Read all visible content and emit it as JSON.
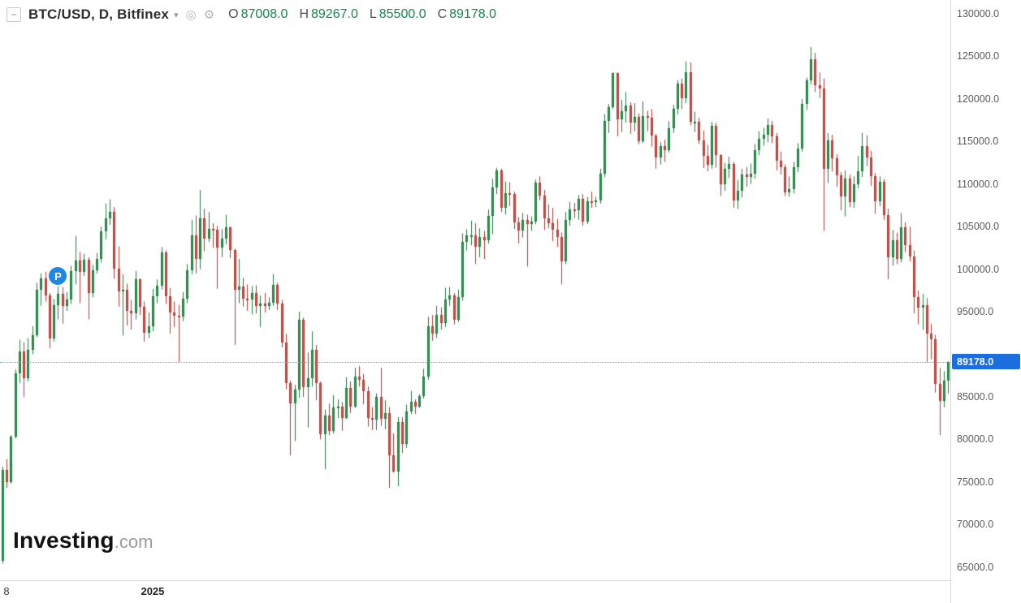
{
  "header": {
    "collapse_glyph": "−",
    "symbol_title": "BTC/USD, D, Bitfinex",
    "caret_glyph": "▾",
    "snapshot_icon_glyph": "◎",
    "settings_icon_glyph": "⚙",
    "ohlc": [
      {
        "label": "O",
        "value": "87008.0"
      },
      {
        "label": "H",
        "value": "89267.0"
      },
      {
        "label": "L",
        "value": "85500.0"
      },
      {
        "label": "C",
        "value": "89178.0"
      }
    ],
    "ohlc_color": "#138a4c"
  },
  "logo": {
    "brand": "Investing",
    "suffix": ".com"
  },
  "price_axis": {
    "labels": [
      {
        "price": 130000,
        "text": "130000.0"
      },
      {
        "price": 125000,
        "text": "125000.0"
      },
      {
        "price": 120000,
        "text": "120000.0"
      },
      {
        "price": 115000,
        "text": "115000.0"
      },
      {
        "price": 110000,
        "text": "110000.0"
      },
      {
        "price": 105000,
        "text": "105000.0"
      },
      {
        "price": 100000,
        "text": "100000.0"
      },
      {
        "price": 95000,
        "text": "95000.0"
      },
      {
        "price": 85000,
        "text": "85000.0"
      },
      {
        "price": 80000,
        "text": "80000.0"
      },
      {
        "price": 75000,
        "text": "75000.0"
      },
      {
        "price": 70000,
        "text": "70000.0"
      },
      {
        "price": 65000,
        "text": "65000.0"
      }
    ],
    "current": {
      "text": "89178.0",
      "price": 89178,
      "bg": "#1c6ede"
    }
  },
  "time_axis": {
    "labels": [
      {
        "text": "8",
        "index": 1,
        "year": false
      },
      {
        "text": "2025",
        "index": 35,
        "year": true
      }
    ]
  },
  "marker": {
    "label": "P",
    "index": 13,
    "price": 99300,
    "bg": "#1e88e5"
  },
  "chart_data": {
    "type": "candlestick",
    "title": "BTC/USD, D, Bitfinex",
    "symbol": "BTC/USD",
    "interval": "D",
    "exchange": "Bitfinex",
    "last": {
      "open": 87008.0,
      "high": 89267.0,
      "low": 85500.0,
      "close": 89178.0
    },
    "ylim": [
      63550,
      131720
    ],
    "y_ticks": [
      65000,
      70000,
      75000,
      80000,
      85000,
      90000,
      95000,
      100000,
      105000,
      110000,
      115000,
      120000,
      125000,
      130000
    ],
    "grid": false,
    "colors": {
      "up": "#2e9e53",
      "down": "#dd4f47",
      "up_border": "#1f7a3e",
      "down_border": "#b23b35"
    },
    "candles": [
      [
        65800,
        76900,
        65500,
        76500
      ],
      [
        76500,
        77800,
        74400,
        75100
      ],
      [
        75100,
        80600,
        74900,
        80400
      ],
      [
        80400,
        88300,
        80200,
        87900
      ],
      [
        87900,
        91800,
        86700,
        90400
      ],
      [
        90400,
        91500,
        85100,
        87300
      ],
      [
        87300,
        92000,
        86900,
        90600
      ],
      [
        90600,
        93400,
        90100,
        92300
      ],
      [
        92300,
        98500,
        92100,
        97700
      ],
      [
        97700,
        99600,
        95800,
        99000
      ],
      [
        99000,
        99800,
        96300,
        97000
      ],
      [
        97000,
        97300,
        90800,
        92000
      ],
      [
        92000,
        96600,
        91600,
        95900
      ],
      [
        95900,
        98100,
        94200,
        97200
      ],
      [
        97200,
        98000,
        93700,
        95800
      ],
      [
        95800,
        97400,
        95200,
        96500
      ],
      [
        96500,
        100500,
        96000,
        99900
      ],
      [
        99900,
        104000,
        98300,
        101100
      ],
      [
        101100,
        102100,
        96100,
        99800
      ],
      [
        99800,
        101900,
        99300,
        101200
      ],
      [
        101200,
        101500,
        94200,
        97300
      ],
      [
        97300,
        100600,
        96800,
        100000
      ],
      [
        100000,
        102000,
        99600,
        101300
      ],
      [
        101300,
        105100,
        100900,
        104500
      ],
      [
        104500,
        107800,
        103600,
        106100
      ],
      [
        106100,
        108300,
        105300,
        106800
      ],
      [
        106800,
        107400,
        99000,
        100200
      ],
      [
        100200,
        102800,
        95700,
        97500
      ],
      [
        97500,
        99500,
        92300,
        97700
      ],
      [
        97700,
        98400,
        93500,
        95200
      ],
      [
        95200,
        96500,
        93000,
        94900
      ],
      [
        94900,
        99900,
        94200,
        98900
      ],
      [
        98900,
        99000,
        94700,
        95700
      ],
      [
        95700,
        96300,
        91600,
        92600
      ],
      [
        92600,
        95000,
        92000,
        93400
      ],
      [
        93400,
        97800,
        92800,
        96900
      ],
      [
        96900,
        98900,
        96100,
        98200
      ],
      [
        98200,
        102700,
        97700,
        102100
      ],
      [
        102100,
        102300,
        96000,
        96900
      ],
      [
        96900,
        97900,
        92500,
        95000
      ],
      [
        95000,
        96300,
        93300,
        94600
      ],
      [
        94600,
        95900,
        89200,
        94500
      ],
      [
        94500,
        97400,
        94000,
        96600
      ],
      [
        96600,
        100700,
        96100,
        100000
      ],
      [
        100000,
        105900,
        99500,
        104100
      ],
      [
        104100,
        106400,
        99600,
        101300
      ],
      [
        101300,
        109400,
        100100,
        106100
      ],
      [
        106100,
        107200,
        102200,
        103700
      ],
      [
        103700,
        106800,
        103300,
        104800
      ],
      [
        104800,
        105500,
        102600,
        104700
      ],
      [
        104700,
        105200,
        97800,
        102600
      ],
      [
        102600,
        104800,
        101500,
        103700
      ],
      [
        103700,
        106500,
        103000,
        105000
      ],
      [
        105000,
        105100,
        101400,
        102400
      ],
      [
        102400,
        102500,
        91200,
        97700
      ],
      [
        97700,
        101300,
        96100,
        98100
      ],
      [
        98100,
        99100,
        95700,
        96600
      ],
      [
        96600,
        98300,
        95200,
        96500
      ],
      [
        96500,
        98100,
        94800,
        97300
      ],
      [
        97300,
        98200,
        94900,
        95800
      ],
      [
        95800,
        97000,
        93300,
        96100
      ],
      [
        96100,
        97300,
        95000,
        95800
      ],
      [
        95800,
        96800,
        95300,
        96200
      ],
      [
        96200,
        99500,
        95800,
        98300
      ],
      [
        98300,
        98500,
        95300,
        96100
      ],
      [
        96100,
        96500,
        90900,
        91500
      ],
      [
        91500,
        92500,
        86000,
        86700
      ],
      [
        86700,
        87000,
        78200,
        84300
      ],
      [
        84300,
        86500,
        79900,
        86000
      ],
      [
        86000,
        95100,
        85000,
        94200
      ],
      [
        94200,
        94400,
        85100,
        86200
      ],
      [
        86200,
        90300,
        81500,
        87300
      ],
      [
        87300,
        92800,
        86300,
        90600
      ],
      [
        90600,
        91200,
        84700,
        86700
      ],
      [
        86700,
        86900,
        80100,
        80700
      ],
      [
        80700,
        83600,
        76600,
        82900
      ],
      [
        82900,
        84300,
        80600,
        81100
      ],
      [
        81100,
        85300,
        80800,
        83900
      ],
      [
        83900,
        84800,
        82600,
        84000
      ],
      [
        84000,
        84500,
        81100,
        82600
      ],
      [
        82600,
        87400,
        82500,
        86100
      ],
      [
        86100,
        86900,
        83200,
        84000
      ],
      [
        84000,
        88500,
        83800,
        87500
      ],
      [
        87500,
        88700,
        86300,
        87100
      ],
      [
        87100,
        87800,
        84200,
        85800
      ],
      [
        85800,
        86300,
        81600,
        82600
      ],
      [
        82600,
        83900,
        81200,
        82400
      ],
      [
        82400,
        85500,
        81200,
        85100
      ],
      [
        85100,
        88500,
        81700,
        82500
      ],
      [
        82500,
        84700,
        81300,
        83200
      ],
      [
        83200,
        83900,
        74400,
        78200
      ],
      [
        78200,
        80800,
        76200,
        76300
      ],
      [
        76300,
        82700,
        74600,
        82100
      ],
      [
        82100,
        82700,
        78500,
        79600
      ],
      [
        79600,
        84200,
        79100,
        83400
      ],
      [
        83400,
        85800,
        83100,
        84500
      ],
      [
        84500,
        84800,
        83100,
        84000
      ],
      [
        84000,
        85400,
        83800,
        85200
      ],
      [
        85200,
        88400,
        84900,
        87500
      ],
      [
        87500,
        94500,
        87100,
        93400
      ],
      [
        93400,
        94700,
        91700,
        92500
      ],
      [
        92500,
        95800,
        92000,
        94700
      ],
      [
        94700,
        95600,
        93000,
        93800
      ],
      [
        93800,
        97900,
        93300,
        96500
      ],
      [
        96500,
        98000,
        95800,
        97000
      ],
      [
        97000,
        97300,
        93600,
        94200
      ],
      [
        94200,
        97700,
        93900,
        96800
      ],
      [
        96800,
        104300,
        96400,
        103300
      ],
      [
        103300,
        104800,
        102300,
        104100
      ],
      [
        104100,
        105800,
        102900,
        104100
      ],
      [
        104100,
        105500,
        100700,
        102700
      ],
      [
        102700,
        104900,
        101500,
        103900
      ],
      [
        103900,
        104600,
        101300,
        103500
      ],
      [
        103500,
        107100,
        103100,
        106400
      ],
      [
        106400,
        110700,
        104200,
        109700
      ],
      [
        109700,
        112000,
        108900,
        111700
      ],
      [
        111700,
        111900,
        106800,
        107300
      ],
      [
        107300,
        110400,
        106500,
        109000
      ],
      [
        109000,
        110300,
        107500,
        108900
      ],
      [
        108900,
        109200,
        104800,
        105600
      ],
      [
        105600,
        106200,
        103100,
        104600
      ],
      [
        104600,
        106700,
        103800,
        105900
      ],
      [
        105900,
        106500,
        100400,
        105400
      ],
      [
        105400,
        106300,
        104600,
        105700
      ],
      [
        105700,
        110600,
        105400,
        110300
      ],
      [
        110300,
        111000,
        108200,
        108700
      ],
      [
        108700,
        109400,
        104700,
        106100
      ],
      [
        106100,
        107700,
        104900,
        105500
      ],
      [
        105500,
        107300,
        103400,
        104700
      ],
      [
        104700,
        106000,
        102700,
        103900
      ],
      [
        103900,
        104400,
        98300,
        101000
      ],
      [
        101000,
        106800,
        100700,
        105900
      ],
      [
        105900,
        108000,
        105200,
        107100
      ],
      [
        107100,
        107900,
        106100,
        107000
      ],
      [
        107000,
        108800,
        105900,
        108400
      ],
      [
        108400,
        108900,
        105200,
        105700
      ],
      [
        105700,
        108600,
        105400,
        108100
      ],
      [
        108100,
        109200,
        107300,
        108000
      ],
      [
        108000,
        108600,
        107400,
        108200
      ],
      [
        108200,
        111900,
        107800,
        111300
      ],
      [
        111300,
        118300,
        110900,
        117500
      ],
      [
        117500,
        119500,
        116100,
        119100
      ],
      [
        119100,
        123200,
        118900,
        123100
      ],
      [
        123100,
        123200,
        115700,
        117700
      ],
      [
        117700,
        120000,
        116200,
        118700
      ],
      [
        118700,
        120900,
        117300,
        119300
      ],
      [
        119300,
        119700,
        116000,
        117300
      ],
      [
        117300,
        119600,
        116300,
        118000
      ],
      [
        118000,
        118400,
        114800,
        115100
      ],
      [
        115100,
        119800,
        114900,
        118100
      ],
      [
        118100,
        118700,
        116300,
        117900
      ],
      [
        117900,
        118900,
        114500,
        115800
      ],
      [
        115800,
        116000,
        111900,
        113200
      ],
      [
        113200,
        115000,
        112400,
        114600
      ],
      [
        114600,
        115300,
        112700,
        114100
      ],
      [
        114100,
        117500,
        113800,
        116700
      ],
      [
        116700,
        119400,
        116100,
        118900
      ],
      [
        118900,
        122300,
        118300,
        121900
      ],
      [
        121900,
        122500,
        118900,
        120200
      ],
      [
        120200,
        124500,
        119600,
        123200
      ],
      [
        123200,
        124400,
        117000,
        117400
      ],
      [
        117400,
        118600,
        116200,
        117400
      ],
      [
        117400,
        117900,
        114800,
        115200
      ],
      [
        115200,
        116400,
        112000,
        113400
      ],
      [
        113400,
        114700,
        111600,
        112400
      ],
      [
        112400,
        117400,
        111900,
        116900
      ],
      [
        116900,
        117300,
        112000,
        113500
      ],
      [
        113500,
        113600,
        108700,
        110100
      ],
      [
        110100,
        112600,
        109300,
        111900
      ],
      [
        111900,
        113300,
        110800,
        112500
      ],
      [
        112500,
        112700,
        107300,
        108200
      ],
      [
        108200,
        110600,
        107200,
        109300
      ],
      [
        109300,
        111900,
        108500,
        111200
      ],
      [
        111200,
        112100,
        109800,
        110900
      ],
      [
        110900,
        112500,
        110100,
        111300
      ],
      [
        111300,
        114800,
        110700,
        114100
      ],
      [
        114100,
        116300,
        113500,
        115400
      ],
      [
        115400,
        116700,
        114600,
        115900
      ],
      [
        115900,
        117800,
        115000,
        117000
      ],
      [
        117000,
        117500,
        114900,
        115700
      ],
      [
        115700,
        116100,
        111700,
        112800
      ],
      [
        112800,
        113900,
        111200,
        112100
      ],
      [
        112100,
        112400,
        108700,
        109100
      ],
      [
        109100,
        111000,
        108600,
        109500
      ],
      [
        109500,
        112700,
        109000,
        112100
      ],
      [
        112100,
        114900,
        111500,
        114300
      ],
      [
        114300,
        120100,
        113900,
        119500
      ],
      [
        119500,
        122600,
        118800,
        122300
      ],
      [
        122300,
        126200,
        121800,
        124800
      ],
      [
        124800,
        125500,
        120900,
        121700
      ],
      [
        121700,
        123200,
        120200,
        121300
      ],
      [
        121300,
        122500,
        104600,
        111900
      ],
      [
        111900,
        116100,
        110200,
        115200
      ],
      [
        115200,
        115900,
        111600,
        113100
      ],
      [
        113100,
        113600,
        109800,
        111100
      ],
      [
        111100,
        111500,
        107000,
        108600
      ],
      [
        108600,
        111700,
        106300,
        110700
      ],
      [
        110700,
        111200,
        107400,
        108000
      ],
      [
        108000,
        111000,
        107300,
        110100
      ],
      [
        110100,
        113400,
        109600,
        111600
      ],
      [
        111600,
        116100,
        110900,
        114600
      ],
      [
        114600,
        115800,
        112200,
        113200
      ],
      [
        113200,
        114000,
        109900,
        111000
      ],
      [
        111000,
        111400,
        106600,
        108100
      ],
      [
        108100,
        111000,
        107500,
        110400
      ],
      [
        110400,
        110700,
        105900,
        106500
      ],
      [
        106500,
        107200,
        98900,
        101500
      ],
      [
        101500,
        104700,
        100500,
        103500
      ],
      [
        103500,
        104400,
        100700,
        101300
      ],
      [
        101300,
        106700,
        100900,
        105000
      ],
      [
        105000,
        105600,
        102100,
        102900
      ],
      [
        102900,
        105100,
        101000,
        101600
      ],
      [
        101600,
        102300,
        94900,
        96800
      ],
      [
        96800,
        97600,
        93600,
        95600
      ],
      [
        95600,
        97200,
        93000,
        95900
      ],
      [
        95900,
        96700,
        89200,
        92500
      ],
      [
        92500,
        93700,
        89500,
        91900
      ],
      [
        91900,
        92400,
        85600,
        86600
      ],
      [
        86600,
        88500,
        80600,
        84600
      ],
      [
        84600,
        88100,
        83900,
        87000
      ],
      [
        87008,
        89267,
        85500,
        89178
      ]
    ]
  }
}
